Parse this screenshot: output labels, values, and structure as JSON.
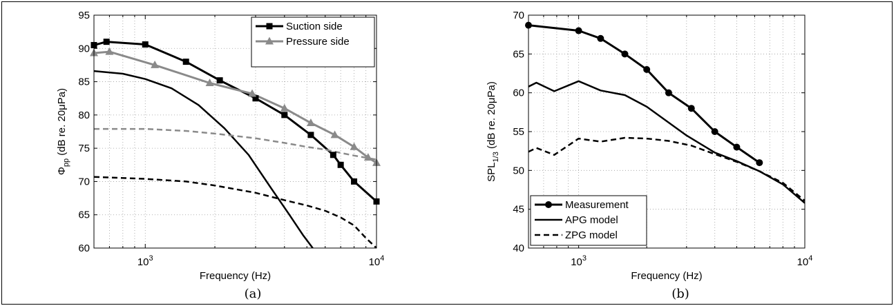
{
  "chart_data": [
    {
      "id": "a",
      "type": "line",
      "caption": "(a)",
      "xlabel": "Frequency (Hz)",
      "ylabel": "Φpp (dB re. 20μPa)",
      "ylabel_main": "Φ",
      "ylabel_sub": "pp",
      "ylabel_rest": " (dB re. 20μPa)",
      "xscale": "log",
      "xlim": [
        600,
        10000
      ],
      "ylim": [
        60,
        95
      ],
      "yticks": [
        60,
        65,
        70,
        75,
        80,
        85,
        90,
        95
      ],
      "xticks": [
        1000,
        10000
      ],
      "xtick_labels": [
        {
          "base": "10",
          "exp": "3"
        },
        {
          "base": "10",
          "exp": "4"
        }
      ],
      "grid": true,
      "legend_position": "top-right",
      "series": [
        {
          "name": "Suction side",
          "color": "#000000",
          "dash": "solid",
          "marker": "square",
          "width": 3,
          "x": [
            600,
            680,
            1000,
            1500,
            2100,
            3000,
            4000,
            5200,
            6500,
            7000,
            8000,
            10000
          ],
          "y": [
            90.5,
            91,
            90.6,
            88,
            85.2,
            82.5,
            80,
            77,
            74,
            72.5,
            70,
            67
          ]
        },
        {
          "name": "Pressure side",
          "color": "#8a8a8a",
          "dash": "solid",
          "marker": "triangle",
          "width": 3,
          "x": [
            600,
            700,
            1100,
            1900,
            2900,
            4000,
            5200,
            6600,
            8000,
            9200,
            10000
          ],
          "y": [
            89.3,
            89.5,
            87.5,
            84.8,
            83.2,
            81,
            78.8,
            77,
            75.2,
            73.6,
            72.8
          ]
        },
        {
          "color": "#000000",
          "dash": "solid",
          "marker": "none",
          "width": 2.5,
          "x": [
            600,
            800,
            1000,
            1300,
            1700,
            2200,
            2800,
            3500,
            4200,
            4800,
            5300
          ],
          "y": [
            86.6,
            86.2,
            85.4,
            84,
            81.5,
            78,
            74,
            69,
            65,
            62,
            60
          ]
        },
        {
          "color": "#8a8a8a",
          "dash": "dash",
          "marker": "none",
          "width": 2.5,
          "x": [
            600,
            1000,
            1500,
            2000,
            3000,
            4000,
            5000,
            6000,
            7000,
            8000,
            10000
          ],
          "y": [
            77.9,
            77.9,
            77.6,
            77.2,
            76.5,
            75.8,
            75.2,
            74.8,
            74.3,
            73.9,
            73.3
          ]
        },
        {
          "color": "#000000",
          "dash": "dash",
          "marker": "none",
          "width": 2.5,
          "x": [
            600,
            1000,
            1500,
            2000,
            3000,
            4000,
            5000,
            6000,
            7000,
            8000,
            9000,
            10000
          ],
          "y": [
            70.7,
            70.4,
            70.0,
            69.4,
            68.3,
            67.2,
            66.4,
            65.6,
            64.6,
            63.4,
            61.5,
            60.0
          ]
        }
      ]
    },
    {
      "id": "b",
      "type": "line",
      "caption": "(b)",
      "xlabel": "Frequency (Hz)",
      "ylabel": "SPL1/3 (dB re. 20μPa)",
      "ylabel_main": "SPL",
      "ylabel_sub": "1/3",
      "ylabel_rest": " (dB re. 20μPa)",
      "xscale": "log",
      "xlim": [
        600,
        10000
      ],
      "ylim": [
        40,
        70
      ],
      "yticks": [
        40,
        45,
        50,
        55,
        60,
        65,
        70
      ],
      "xticks": [
        1000,
        10000
      ],
      "xtick_labels": [
        {
          "base": "10",
          "exp": "3"
        },
        {
          "base": "10",
          "exp": "4"
        }
      ],
      "grid": true,
      "legend_position": "bottom-left",
      "series": [
        {
          "name": "Measurement",
          "color": "#000000",
          "dash": "solid",
          "marker": "circle",
          "width": 3,
          "x": [
            600,
            1000,
            1250,
            1600,
            2000,
            2500,
            3150,
            4000,
            5000,
            6300
          ],
          "y": [
            68.7,
            68,
            67,
            65,
            63,
            60,
            58,
            55,
            53,
            51
          ]
        },
        {
          "name": "APG model",
          "color": "#000000",
          "dash": "solid",
          "marker": "none",
          "width": 2.5,
          "x": [
            600,
            650,
            780,
            1000,
            1250,
            1600,
            2000,
            3000,
            4000,
            5000,
            6300,
            8000,
            10000
          ],
          "y": [
            60.8,
            61.3,
            60.2,
            61.5,
            60.3,
            59.7,
            58.2,
            54.5,
            52.3,
            51.2,
            49.9,
            48.2,
            45.8
          ]
        },
        {
          "name": "ZPG model",
          "color": "#000000",
          "dash": "dash",
          "marker": "none",
          "width": 2.5,
          "x": [
            600,
            650,
            780,
            1000,
            1250,
            1600,
            2000,
            2500,
            3150,
            4000,
            5000,
            6300,
            8000,
            10000
          ],
          "y": [
            52.4,
            52.9,
            52.0,
            54.1,
            53.7,
            54.2,
            54.1,
            53.8,
            53.2,
            52.1,
            51.1,
            49.9,
            48.4,
            46.1
          ]
        }
      ]
    }
  ]
}
